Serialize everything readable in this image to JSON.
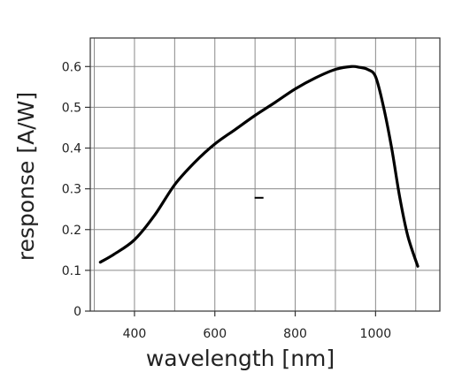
{
  "chart_data": {
    "type": "line",
    "xlabel": "wavelength [nm]",
    "ylabel": "response [A/W]",
    "xlim": [
      290,
      1160
    ],
    "ylim": [
      0,
      0.67
    ],
    "x_ticks": [
      {
        "value": 400,
        "label": "400"
      },
      {
        "value": 600,
        "label": "600"
      },
      {
        "value": 800,
        "label": "800"
      },
      {
        "value": 1000,
        "label": "1000"
      }
    ],
    "y_ticks": [
      {
        "value": 0,
        "label": "0"
      },
      {
        "value": 0.1,
        "label": "0.1"
      },
      {
        "value": 0.2,
        "label": "0.2"
      },
      {
        "value": 0.3,
        "label": "0.3"
      },
      {
        "value": 0.4,
        "label": "0.4"
      },
      {
        "value": 0.5,
        "label": "0.5"
      },
      {
        "value": 0.6,
        "label": "0.6"
      }
    ],
    "grid_x": [
      300,
      400,
      500,
      600,
      700,
      800,
      900,
      1000,
      1100
    ],
    "grid_y": [
      0.1,
      0.2,
      0.3,
      0.4,
      0.5,
      0.6
    ],
    "grid": true,
    "legend": "none",
    "colors": {
      "line": "#000000",
      "grid": "#8a8a8a",
      "frame": "#333333"
    },
    "series": [
      {
        "x": [
          315,
          350,
          400,
          450,
          500,
          550,
          600,
          650,
          700,
          750,
          800,
          850,
          900,
          940,
          960,
          980,
          1000,
          1020,
          1040,
          1060,
          1080,
          1105
        ],
        "y": [
          0.12,
          0.14,
          0.175,
          0.235,
          0.31,
          0.365,
          0.41,
          0.445,
          0.48,
          0.512,
          0.545,
          0.572,
          0.593,
          0.6,
          0.598,
          0.593,
          0.575,
          0.5,
          0.4,
          0.28,
          0.185,
          0.11
        ]
      }
    ],
    "annotations": [
      {
        "x": 710,
        "y": 0.278,
        "text": "–"
      }
    ]
  }
}
